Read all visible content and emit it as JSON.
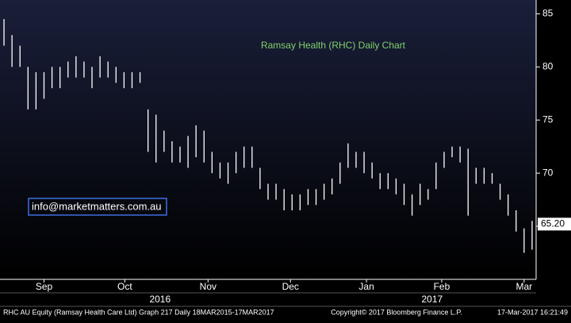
{
  "chart_data": {
    "type": "ohlc",
    "title": "Ramsay Health (RHC) Daily Chart",
    "annotation": "info@marketmatters.com.au",
    "high": [
      84.5,
      83,
      82,
      80,
      79.5,
      79.5,
      80,
      80,
      80.5,
      81,
      80.5,
      80,
      81,
      80.5,
      80,
      79.5,
      79.5,
      79.5,
      76,
      75.5,
      74,
      73,
      72.5,
      73.5,
      74.5,
      74,
      72,
      71,
      71,
      72,
      72.5,
      72.5,
      70.5,
      69,
      69,
      68.5,
      68,
      68,
      68.5,
      68.5,
      69,
      69.5,
      71,
      72.8,
      72,
      72,
      71,
      70,
      70,
      69.5,
      69,
      68,
      69,
      68.5,
      71,
      72,
      72.5,
      72.5,
      72.3,
      70.5,
      70.5,
      70,
      69,
      68,
      66.5,
      64.8,
      65.5
    ],
    "low": [
      82,
      80,
      80,
      76,
      76,
      77,
      78,
      78,
      79,
      79,
      79,
      78,
      79,
      79,
      78.5,
      78,
      78,
      78.5,
      72,
      71,
      72,
      71,
      71,
      70.5,
      71.5,
      71,
      70,
      69.5,
      69,
      70,
      70.5,
      70.5,
      68.5,
      67.5,
      67.5,
      66.5,
      66.5,
      66.5,
      67,
      67,
      67.5,
      68,
      69,
      70.5,
      70.5,
      70,
      69.5,
      68.5,
      68.5,
      68,
      67,
      66,
      67,
      67.5,
      68.5,
      70.5,
      71.5,
      71,
      66,
      69,
      69,
      69,
      67.5,
      66,
      64.5,
      62.5,
      62.8
    ],
    "color": "#ffffff",
    "last_price": {
      "value": 65.2,
      "label": "65.20"
    },
    "ylim": [
      60,
      86.3
    ],
    "yticks": [
      65,
      70,
      75,
      80,
      85
    ],
    "xlim": [
      0,
      67
    ],
    "xticks": [
      {
        "value": 5.5,
        "label": "Sep"
      },
      {
        "value": 15.6,
        "label": "Oct"
      },
      {
        "value": 26,
        "label": "Nov"
      },
      {
        "value": 36.3,
        "label": "Dec"
      },
      {
        "value": 45.8,
        "label": "Jan"
      },
      {
        "value": 55.2,
        "label": "Feb"
      },
      {
        "value": 65.5,
        "label": "Mar"
      }
    ],
    "years": [
      {
        "value": 20,
        "label": "2016"
      },
      {
        "value": 54,
        "label": "2017"
      }
    ],
    "footer": {
      "left": "RHC AU Equity (Ramsay Health Care Ltd) Graph 217  Daily 18MAR2015-17MAR2017",
      "center": "Copyright© 2017 Bloomberg Finance L.P.",
      "right": "17-Mar-2017 16:21:49"
    }
  }
}
